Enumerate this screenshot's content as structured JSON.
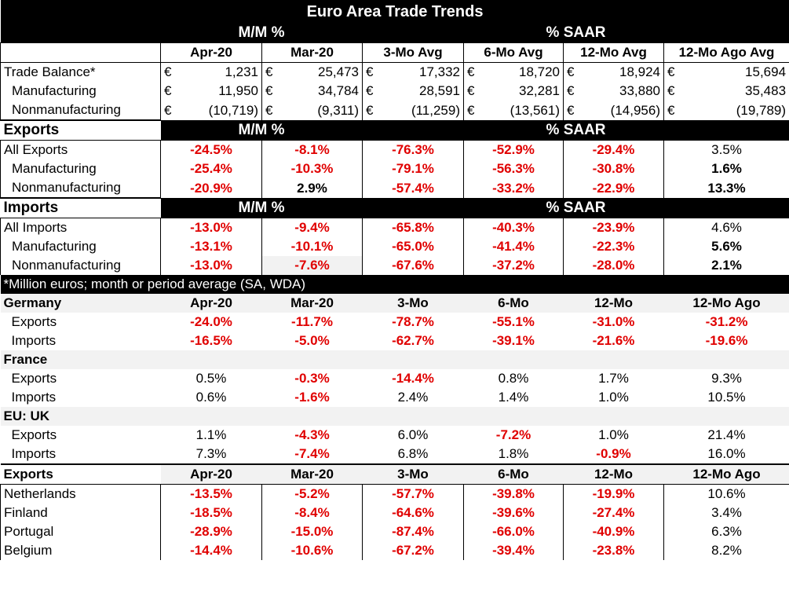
{
  "title": "Euro Area Trade Trends",
  "band": {
    "mm": "M/M %",
    "saar": "% SAAR"
  },
  "periods": [
    "Apr-20",
    "Mar-20",
    "3-Mo Avg",
    "6-Mo Avg",
    "12-Mo Avg",
    "12-Mo Ago Avg"
  ],
  "currency": "€",
  "balance": [
    {
      "label": "Trade Balance*",
      "vals": [
        "1,231",
        "25,473",
        "17,332",
        "18,720",
        "18,924",
        "15,694"
      ]
    },
    {
      "label": "Manufacturing",
      "vals": [
        "11,950",
        "34,784",
        "28,591",
        "32,281",
        "33,880",
        "35,483"
      ]
    },
    {
      "label": "Nonmanufacturing",
      "vals": [
        "(10,719)",
        "(9,311)",
        "(11,259)",
        "(13,561)",
        "(14,956)",
        "(19,789)"
      ]
    }
  ],
  "exports_label": "Exports",
  "imports_label": "Imports",
  "exports": [
    {
      "label": "All Exports",
      "vals": [
        "-24.5%",
        "-8.1%",
        "-76.3%",
        "-52.9%",
        "-29.4%",
        "3.5%"
      ]
    },
    {
      "label": "Manufacturing",
      "vals": [
        "-25.4%",
        "-10.3%",
        "-79.1%",
        "-56.3%",
        "-30.8%",
        "1.6%"
      ]
    },
    {
      "label": "Nonmanufacturing",
      "vals": [
        "-20.9%",
        "2.9%",
        "-57.4%",
        "-33.2%",
        "-22.9%",
        "13.3%"
      ]
    }
  ],
  "imports": [
    {
      "label": "All Imports",
      "vals": [
        "-13.0%",
        "-9.4%",
        "-65.8%",
        "-40.3%",
        "-23.9%",
        "4.6%"
      ]
    },
    {
      "label": "Manufacturing",
      "vals": [
        "-13.1%",
        "-10.1%",
        "-65.0%",
        "-41.4%",
        "-22.3%",
        "5.6%"
      ]
    },
    {
      "label": "Nonmanufacturing",
      "vals": [
        "-13.0%",
        "-7.6%",
        "-67.6%",
        "-37.2%",
        "-28.0%",
        "2.1%"
      ]
    }
  ],
  "note": "*Million euros; month or period average (SA, WDA)",
  "country_periods": [
    "Apr-20",
    "Mar-20",
    "3-Mo",
    "6-Mo",
    "12-Mo",
    "12-Mo Ago"
  ],
  "countries": [
    {
      "name": "Germany",
      "rows": [
        {
          "label": "Exports",
          "vals": [
            "-24.0%",
            "-11.7%",
            "-78.7%",
            "-55.1%",
            "-31.0%",
            "-31.2%"
          ]
        },
        {
          "label": "Imports",
          "vals": [
            "-16.5%",
            "-5.0%",
            "-62.7%",
            "-39.1%",
            "-21.6%",
            "-19.6%"
          ]
        }
      ]
    },
    {
      "name": "France",
      "rows": [
        {
          "label": "Exports",
          "vals": [
            "0.5%",
            "-0.3%",
            "-14.4%",
            "0.8%",
            "1.7%",
            "9.3%"
          ]
        },
        {
          "label": "Imports",
          "vals": [
            "0.6%",
            "-1.6%",
            "2.4%",
            "1.4%",
            "1.0%",
            "10.5%"
          ]
        }
      ]
    },
    {
      "name": "EU: UK",
      "rows": [
        {
          "label": "Exports",
          "vals": [
            "1.1%",
            "-4.3%",
            "6.0%",
            "-7.2%",
            "1.0%",
            "21.4%"
          ]
        },
        {
          "label": "Imports",
          "vals": [
            "7.3%",
            "-7.4%",
            "6.8%",
            "1.8%",
            "-0.9%",
            "16.0%"
          ]
        }
      ]
    }
  ],
  "exports_by_country": [
    {
      "label": "Netherlands",
      "vals": [
        "-13.5%",
        "-5.2%",
        "-57.7%",
        "-39.8%",
        "-19.9%",
        "10.6%"
      ]
    },
    {
      "label": "Finland",
      "vals": [
        "-18.5%",
        "-8.4%",
        "-64.6%",
        "-39.6%",
        "-27.4%",
        "3.4%"
      ]
    },
    {
      "label": "Portugal",
      "vals": [
        "-28.9%",
        "-15.0%",
        "-87.4%",
        "-66.0%",
        "-40.9%",
        "6.3%"
      ]
    },
    {
      "label": "Belgium",
      "vals": [
        "-14.4%",
        "-10.6%",
        "-67.2%",
        "-39.4%",
        "-23.8%",
        "8.2%"
      ]
    }
  ],
  "colors": {
    "negative": "#e00000",
    "header_bg": "#000000",
    "shade": "#f2f2f2"
  }
}
